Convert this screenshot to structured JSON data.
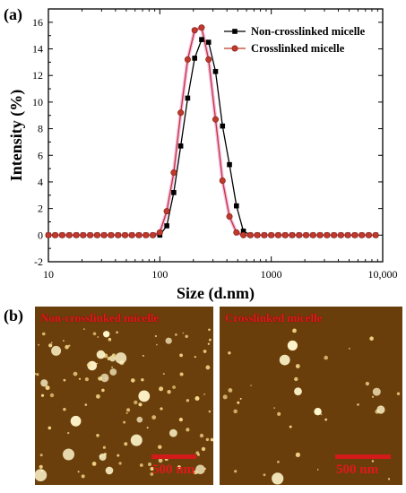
{
  "panel_labels": {
    "a": "(a)",
    "b": "(b)"
  },
  "chart_data": {
    "type": "line",
    "xlabel": "Size (d.nm)",
    "ylabel": "Intensity (%)",
    "xscale": "log",
    "xlim": [
      10,
      10000
    ],
    "ylim": [
      -2,
      17
    ],
    "xticks": [
      10,
      100,
      1000,
      10000
    ],
    "xtick_labels": [
      "10",
      "100",
      "1000",
      "10,000"
    ],
    "yticks": [
      -2,
      0,
      2,
      4,
      6,
      8,
      10,
      12,
      14,
      16
    ],
    "legend_position": "top-right",
    "grid": false,
    "series": [
      {
        "name": "Non-crosslinked micelle",
        "color": "#000000",
        "marker": "square",
        "x": [
          10,
          11.5,
          13.3,
          15.4,
          17.8,
          20.5,
          23.7,
          27.4,
          31.6,
          36.5,
          42.2,
          48.7,
          56.2,
          65,
          75,
          86.6,
          100,
          115.5,
          133.4,
          154,
          177.8,
          205.4,
          237.1,
          273.8,
          316.2,
          365.2,
          421.7,
          487,
          562.3,
          649.4,
          749.9,
          866,
          1000,
          1155,
          1334,
          1540,
          1778,
          2054,
          2371,
          2738,
          3162,
          3652,
          4217,
          4870,
          5623,
          6494,
          7499,
          8660
        ],
        "y": [
          0,
          0,
          0,
          0,
          0,
          0,
          0,
          0,
          0,
          0,
          0,
          0,
          0,
          0,
          0,
          0,
          0,
          0.7,
          3.2,
          6.7,
          10.3,
          13.3,
          14.7,
          14.5,
          12.3,
          8.2,
          5.3,
          2.2,
          0.3,
          0,
          0,
          0,
          0,
          0,
          0,
          0,
          0,
          0,
          0,
          0,
          0,
          0,
          0,
          0,
          0,
          0,
          0,
          0
        ]
      },
      {
        "name": "Crosslinked micelle",
        "color": "#c0392b",
        "marker": "circle",
        "x": [
          10,
          11.5,
          13.3,
          15.4,
          17.8,
          20.5,
          23.7,
          27.4,
          31.6,
          36.5,
          42.2,
          48.7,
          56.2,
          65,
          75,
          86.6,
          100,
          115.5,
          133.4,
          154,
          177.8,
          205.4,
          237.1,
          273.8,
          316.2,
          365.2,
          421.7,
          487,
          562.3,
          649.4,
          749.9,
          866,
          1000,
          1155,
          1334,
          1540,
          1778,
          2054,
          2371,
          2738,
          3162,
          3652,
          4217,
          4870,
          5623,
          6494,
          7499,
          8660
        ],
        "y": [
          0,
          0,
          0,
          0,
          0,
          0,
          0,
          0,
          0,
          0,
          0,
          0,
          0,
          0,
          0,
          0,
          0.2,
          1.8,
          4.7,
          9.2,
          13.2,
          15.4,
          15.6,
          13.2,
          8.7,
          4.1,
          1.4,
          0.2,
          0,
          0,
          0,
          0,
          0,
          0,
          0,
          0,
          0,
          0,
          0,
          0,
          0,
          0,
          0,
          0,
          0,
          0,
          0,
          0
        ]
      }
    ]
  },
  "afm": [
    {
      "title": "Non-crosslinked micelle",
      "scale_label": "500 nm",
      "bg_color": "#6b3f0c"
    },
    {
      "title": "Crosslinked micelle",
      "scale_label": "500 nm",
      "bg_color": "#6a3e0b"
    }
  ]
}
